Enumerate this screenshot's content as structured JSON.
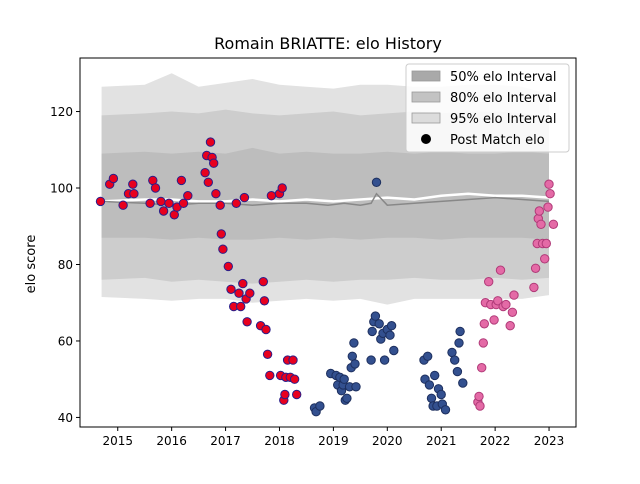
{
  "chart_data": {
    "type": "scatter",
    "title": "Romain BRIATTE: elo History",
    "xlabel": "",
    "ylabel": "elo score",
    "xlim": [
      2014.3,
      2023.5
    ],
    "ylim": [
      37.5,
      134
    ],
    "x_ticks": [
      2015,
      2016,
      2017,
      2018,
      2019,
      2020,
      2021,
      2022,
      2023
    ],
    "x_tick_labels": [
      "2015",
      "2016",
      "2017",
      "2018",
      "2019",
      "2020",
      "2021",
      "2022",
      "2023"
    ],
    "y_ticks": [
      40,
      60,
      80,
      100,
      120
    ],
    "y_tick_labels": [
      "40",
      "60",
      "80",
      "100",
      "120"
    ],
    "grid": false,
    "legend_position": "top-right",
    "legend": [
      {
        "label": "50% elo Interval",
        "kind": "patch",
        "color": "#a9a9a9"
      },
      {
        "label": "80% elo Interval",
        "kind": "patch",
        "color": "#c3c3c3"
      },
      {
        "label": "95% elo Interval",
        "kind": "patch",
        "color": "#dcdcdc"
      },
      {
        "label": "Post Match elo",
        "kind": "marker",
        "color": "#000000"
      }
    ],
    "bands": [
      {
        "name": "95% elo Interval",
        "color": "#e2e2e2",
        "x": [
          2014.7,
          2015.5,
          2016.0,
          2016.5,
          2017.0,
          2017.5,
          2018.0,
          2018.5,
          2019.0,
          2019.5,
          2020.0,
          2020.5,
          2021.0,
          2021.5,
          2022.0,
          2022.5,
          2023.0
        ],
        "lower": [
          71.5,
          71.0,
          70.5,
          71.0,
          71.0,
          70.0,
          70.5,
          71.0,
          70.5,
          71.0,
          69.5,
          71.0,
          71.0,
          71.0,
          71.0,
          71.0,
          72.0
        ],
        "upper": [
          126.5,
          127.0,
          130.0,
          126.5,
          127.5,
          128.5,
          127.0,
          126.5,
          126.0,
          127.0,
          127.0,
          126.5,
          126.5,
          127.0,
          127.0,
          126.5,
          124.5
        ]
      },
      {
        "name": "80% elo Interval",
        "color": "#cdcdcd",
        "x": [
          2014.7,
          2015.5,
          2016.0,
          2016.5,
          2017.0,
          2017.5,
          2018.0,
          2018.5,
          2019.0,
          2019.5,
          2020.0,
          2020.5,
          2021.0,
          2021.5,
          2022.0,
          2022.5,
          2023.0
        ],
        "lower": [
          76.0,
          76.5,
          75.5,
          76.0,
          75.5,
          75.0,
          75.5,
          76.0,
          75.5,
          76.0,
          76.0,
          76.5,
          76.0,
          76.0,
          76.5,
          76.0,
          76.5
        ],
        "upper": [
          119.0,
          119.5,
          120.0,
          119.5,
          120.5,
          119.5,
          119.0,
          119.5,
          120.0,
          119.0,
          119.5,
          120.0,
          119.5,
          120.0,
          120.0,
          119.5,
          118.5
        ]
      },
      {
        "name": "50% elo Interval",
        "color": "#bdbdbd",
        "x": [
          2014.7,
          2015.5,
          2016.0,
          2016.5,
          2017.0,
          2017.5,
          2018.0,
          2018.5,
          2019.0,
          2019.5,
          2020.0,
          2020.5,
          2021.0,
          2021.5,
          2022.0,
          2022.5,
          2023.0
        ],
        "lower": [
          87.0,
          87.0,
          86.5,
          87.0,
          86.5,
          86.5,
          87.0,
          86.5,
          87.0,
          86.5,
          87.0,
          87.0,
          86.5,
          87.0,
          87.0,
          87.0,
          86.5
        ],
        "upper": [
          109.0,
          109.5,
          109.0,
          109.5,
          109.0,
          110.5,
          109.0,
          109.5,
          109.0,
          109.0,
          109.5,
          109.0,
          109.5,
          109.0,
          109.0,
          109.5,
          109.0
        ]
      }
    ],
    "mean_line": {
      "color": "#888888",
      "x": [
        2014.7,
        2015.5,
        2016.0,
        2016.5,
        2017.0,
        2017.5,
        2018.0,
        2018.5,
        2018.9,
        2019.2,
        2019.5,
        2019.7,
        2019.8,
        2020.0,
        2020.5,
        2021.0,
        2021.5,
        2022.0,
        2022.5,
        2023.0
      ],
      "y": [
        96.5,
        96.0,
        95.5,
        96.0,
        96.0,
        95.5,
        96.0,
        96.0,
        95.5,
        96.0,
        95.5,
        96.0,
        98.5,
        95.5,
        96.0,
        96.5,
        97.0,
        97.5,
        97.0,
        96.5
      ]
    },
    "post_match_line": {
      "color": "#ffffff",
      "x": [
        2014.7,
        2015.5,
        2016.0,
        2016.5,
        2017.0,
        2017.5,
        2018.0,
        2018.5,
        2019.0,
        2019.5,
        2020.0,
        2020.5,
        2021.0,
        2021.5,
        2022.0,
        2022.5,
        2023.0
      ],
      "y": [
        96.5,
        97.0,
        97.0,
        96.5,
        96.5,
        97.0,
        96.5,
        97.0,
        96.5,
        97.0,
        97.5,
        97.0,
        98.0,
        98.5,
        98.0,
        98.0,
        97.5
      ]
    },
    "series": [
      {
        "name": "Post Match elo",
        "fill": "#e8001e",
        "edge": "#2a1f8a",
        "points": [
          [
            2014.68,
            96.5
          ],
          [
            2014.85,
            101.0
          ],
          [
            2014.92,
            102.5
          ],
          [
            2015.1,
            95.5
          ],
          [
            2015.2,
            98.5
          ],
          [
            2015.28,
            101.0
          ],
          [
            2015.3,
            98.5
          ],
          [
            2015.6,
            96.0
          ],
          [
            2015.65,
            102.0
          ],
          [
            2015.7,
            100.0
          ],
          [
            2015.8,
            96.5
          ],
          [
            2015.85,
            94.0
          ],
          [
            2015.95,
            96.0
          ],
          [
            2016.05,
            93.0
          ],
          [
            2016.1,
            95.0
          ],
          [
            2016.18,
            102.0
          ],
          [
            2016.22,
            96.0
          ],
          [
            2016.3,
            98.0
          ],
          [
            2016.62,
            104.0
          ],
          [
            2016.65,
            108.5
          ],
          [
            2016.68,
            101.5
          ],
          [
            2016.72,
            112.0
          ],
          [
            2016.75,
            108.0
          ],
          [
            2016.78,
            106.5
          ],
          [
            2016.82,
            98.5
          ],
          [
            2016.9,
            95.5
          ],
          [
            2016.92,
            88.0
          ],
          [
            2016.95,
            84.0
          ],
          [
            2017.05,
            79.5
          ],
          [
            2017.1,
            73.5
          ],
          [
            2017.15,
            69.0
          ],
          [
            2017.2,
            96.0
          ],
          [
            2017.25,
            72.5
          ],
          [
            2017.28,
            69.0
          ],
          [
            2017.32,
            75.0
          ],
          [
            2017.35,
            97.5
          ],
          [
            2017.38,
            71.0
          ],
          [
            2017.4,
            65.0
          ],
          [
            2017.45,
            72.5
          ],
          [
            2017.65,
            64.0
          ],
          [
            2017.7,
            75.5
          ],
          [
            2017.72,
            70.5
          ],
          [
            2017.75,
            63.0
          ],
          [
            2017.78,
            56.5
          ],
          [
            2017.82,
            51.0
          ],
          [
            2017.85,
            98.0
          ],
          [
            2018.0,
            98.5
          ],
          [
            2018.02,
            51.0
          ],
          [
            2018.05,
            100.0
          ],
          [
            2018.08,
            44.5
          ],
          [
            2018.1,
            46.0
          ],
          [
            2018.12,
            50.5
          ],
          [
            2018.15,
            55.0
          ],
          [
            2018.2,
            50.5
          ],
          [
            2018.25,
            55.0
          ],
          [
            2018.28,
            50.0
          ],
          [
            2018.32,
            46.0
          ]
        ]
      },
      {
        "name": "Post Match elo",
        "fill": "#33508f",
        "edge": "#1d2f5e",
        "points": [
          [
            2018.65,
            42.5
          ],
          [
            2018.68,
            41.5
          ],
          [
            2018.75,
            43.0
          ],
          [
            2018.95,
            51.5
          ],
          [
            2019.05,
            51.0
          ],
          [
            2019.08,
            48.5
          ],
          [
            2019.12,
            50.5
          ],
          [
            2019.15,
            47.0
          ],
          [
            2019.18,
            48.5
          ],
          [
            2019.2,
            50.0
          ],
          [
            2019.22,
            44.5
          ],
          [
            2019.25,
            45.0
          ],
          [
            2019.3,
            48.0
          ],
          [
            2019.33,
            53.0
          ],
          [
            2019.35,
            56.0
          ],
          [
            2019.38,
            59.5
          ],
          [
            2019.4,
            54.0
          ],
          [
            2019.42,
            48.0
          ],
          [
            2019.7,
            55.0
          ],
          [
            2019.72,
            62.5
          ],
          [
            2019.75,
            65.0
          ],
          [
            2019.78,
            66.5
          ],
          [
            2019.8,
            101.5
          ],
          [
            2019.85,
            64.5
          ],
          [
            2019.88,
            60.5
          ],
          [
            2019.92,
            62.0
          ],
          [
            2019.95,
            55.0
          ],
          [
            2020.0,
            63.0
          ],
          [
            2020.05,
            61.5
          ],
          [
            2020.08,
            64.0
          ],
          [
            2020.12,
            57.5
          ],
          [
            2020.68,
            55.0
          ],
          [
            2020.7,
            50.0
          ],
          [
            2020.75,
            56.0
          ],
          [
            2020.78,
            48.5
          ],
          [
            2020.82,
            45.0
          ],
          [
            2020.85,
            43.0
          ],
          [
            2020.88,
            51.0
          ],
          [
            2020.92,
            43.0
          ],
          [
            2020.95,
            47.5
          ],
          [
            2021.0,
            46.0
          ],
          [
            2021.02,
            43.5
          ],
          [
            2021.08,
            42.0
          ],
          [
            2021.2,
            57.0
          ],
          [
            2021.25,
            55.0
          ],
          [
            2021.3,
            52.0
          ],
          [
            2021.33,
            59.5
          ],
          [
            2021.35,
            62.5
          ],
          [
            2021.4,
            49.0
          ]
        ]
      },
      {
        "name": "Post Match elo",
        "fill": "#e46aa6",
        "edge": "#b03a78",
        "points": [
          [
            2021.68,
            44.0
          ],
          [
            2021.7,
            45.5
          ],
          [
            2021.72,
            43.0
          ],
          [
            2021.75,
            53.0
          ],
          [
            2021.78,
            59.5
          ],
          [
            2021.8,
            64.5
          ],
          [
            2021.82,
            70.0
          ],
          [
            2021.88,
            75.5
          ],
          [
            2021.92,
            69.5
          ],
          [
            2021.98,
            65.5
          ],
          [
            2022.02,
            69.5
          ],
          [
            2022.05,
            70.5
          ],
          [
            2022.1,
            78.5
          ],
          [
            2022.15,
            69.0
          ],
          [
            2022.2,
            69.5
          ],
          [
            2022.28,
            64.0
          ],
          [
            2022.32,
            67.5
          ],
          [
            2022.35,
            72.0
          ],
          [
            2022.72,
            74.0
          ],
          [
            2022.75,
            79.0
          ],
          [
            2022.78,
            85.5
          ],
          [
            2022.8,
            92.0
          ],
          [
            2022.82,
            94.0
          ],
          [
            2022.85,
            90.5
          ],
          [
            2022.88,
            85.5
          ],
          [
            2022.92,
            81.5
          ],
          [
            2022.95,
            85.5
          ],
          [
            2022.98,
            95.0
          ],
          [
            2023.0,
            101.0
          ],
          [
            2023.02,
            98.5
          ],
          [
            2023.08,
            90.5
          ]
        ]
      }
    ]
  }
}
